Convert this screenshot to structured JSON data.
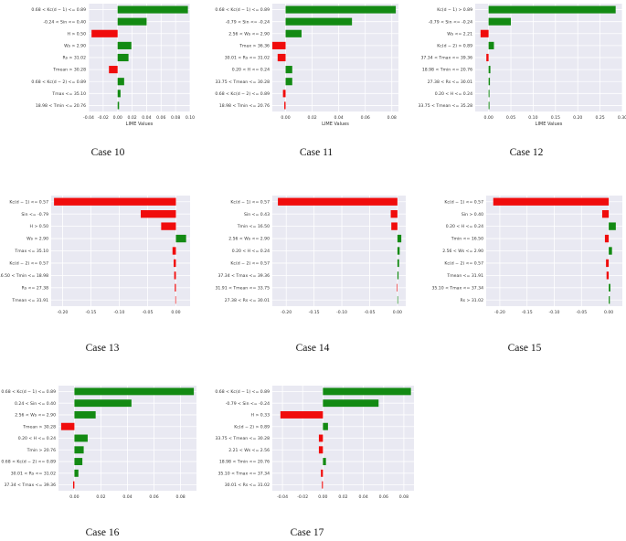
{
  "colors": {
    "positive": "#138a13",
    "negative": "#f00c0c",
    "plot_bg": "#e9e9f2",
    "grid": "#ffffff",
    "text": "#333333"
  },
  "chart_data": [
    {
      "type": "bar",
      "orientation": "horizontal",
      "caption": "Case 10",
      "xlabel": "LIME Values",
      "xlim": [
        -0.04,
        0.1
      ],
      "xticks": [
        -0.04,
        -0.02,
        0.0,
        0.02,
        0.04,
        0.06,
        0.08,
        0.1
      ],
      "xtick_labels": [
        "-0.04",
        "-0.02",
        "0.00",
        "0.02",
        "0.04",
        "0.06",
        "0.08",
        "0.10"
      ],
      "categories": [
        "0.68 < Kc(d − 1) <= 0.89",
        "-0.24 < Sin <= 0.40",
        "H > 0.50",
        "Ws > 2.90",
        "Rs > 31.02",
        "Tmean > 30.28",
        "0.68 < Kc(d − 2) <= 0.89",
        "Tmax <= 35.10",
        "18.98 < Tmin <= 20.76"
      ],
      "values": [
        0.097,
        0.04,
        -0.036,
        0.019,
        0.015,
        -0.012,
        0.009,
        0.004,
        0.002
      ]
    },
    {
      "type": "bar",
      "orientation": "horizontal",
      "caption": "Case 11",
      "xlabel": "LIME Values",
      "xlim": [
        -0.01,
        0.085
      ],
      "xticks": [
        0.0,
        0.02,
        0.04,
        0.06,
        0.08
      ],
      "xtick_labels": [
        "0.00",
        "0.02",
        "0.04",
        "0.06",
        "0.08"
      ],
      "categories": [
        "0.68 < Kc(d − 1) <= 0.89",
        "-0.79 < Sin <= -0.24",
        "2.56 < Ws <= 2.90",
        "Tmax > 36.36",
        "30.01 < Rs <= 31.02",
        "0.20 < H <= 0.24",
        "33.75 < Tmean <= 30.28",
        "0.68 < Kc(d − 2) <= 0.89",
        "18.98 < Tmin <= 20.76"
      ],
      "values": [
        0.083,
        0.05,
        0.012,
        -0.01,
        -0.006,
        0.005,
        0.005,
        -0.002,
        -0.001
      ]
    },
    {
      "type": "bar",
      "orientation": "horizontal",
      "caption": "Case 12",
      "xlabel": "LIME Values",
      "xlim": [
        -0.03,
        0.3
      ],
      "xticks": [
        0.0,
        0.05,
        0.1,
        0.15,
        0.2,
        0.25,
        0.3
      ],
      "xtick_labels": [
        "0.00",
        "0.05",
        "0.10",
        "0.15",
        "0.20",
        "0.25",
        "0.30"
      ],
      "categories": [
        "Kc(d − 1) > 0.89",
        "-0.79 < Sin <= -0.24",
        "Ws <= 2.21",
        "Kc(d − 2) > 0.89",
        "37.34 < Tmax <= 39.36",
        "18.98 < Tmin <= 20.76",
        "27.38 < Rs <= 30.01",
        "0.20 < H <= 0.24",
        "33.75 < Tmean <= 35.28"
      ],
      "values": [
        0.285,
        0.05,
        -0.018,
        0.012,
        -0.005,
        0.004,
        0.003,
        0.002,
        0.002
      ]
    },
    {
      "type": "bar",
      "orientation": "horizontal",
      "caption": "Case 13",
      "xlabel": "",
      "xlim": [
        -0.22,
        0.025
      ],
      "xticks": [
        -0.2,
        -0.15,
        -0.1,
        -0.05,
        0.0
      ],
      "xtick_labels": [
        "-0.20",
        "-0.15",
        "-0.10",
        "-0.05",
        "0.00"
      ],
      "categories": [
        "Kc(d − 1) <= 0.57",
        "Sin <= -0.79",
        "H > 0.50",
        "Ws > 2.90",
        "Tmax <= 35.10",
        "Kc(d − 2) <= 0.57",
        "16.50 < Tmin <= 18.98",
        "Rs <= 27.38",
        "Tmean <= 31.91"
      ],
      "values": [
        -0.215,
        -0.062,
        -0.026,
        0.018,
        -0.006,
        -0.004,
        -0.003,
        -0.002,
        -0.001
      ]
    },
    {
      "type": "bar",
      "orientation": "horizontal",
      "caption": "Case 14",
      "xlabel": "",
      "xlim": [
        -0.225,
        0.015
      ],
      "xticks": [
        -0.2,
        -0.15,
        -0.1,
        -0.05,
        0.0
      ],
      "xtick_labels": [
        "-0.20",
        "-0.15",
        "-0.10",
        "-0.05",
        "0.00"
      ],
      "categories": [
        "Kc(d − 1) <= 0.57",
        "Sin <= 0.43",
        "Tmin <= 16.50",
        "2.56 < Ws <= 2.90",
        "0.20 < H <= 0.24",
        "Kc(d − 2) <= 0.57",
        "37.34 < Tmax <= 39.36",
        "31.91 < Tmean <= 33.75",
        "27.38 < Rs <= 30.01"
      ],
      "values": [
        -0.215,
        -0.012,
        -0.011,
        0.007,
        0.004,
        0.003,
        0.002,
        -0.001,
        0.001
      ]
    },
    {
      "type": "bar",
      "orientation": "horizontal",
      "caption": "Case 15",
      "xlabel": "",
      "xlim": [
        -0.225,
        0.025
      ],
      "xticks": [
        -0.2,
        -0.15,
        -0.1,
        -0.05,
        0.0
      ],
      "xtick_labels": [
        "-0.20",
        "-0.15",
        "-0.10",
        "-0.05",
        "0.00"
      ],
      "categories": [
        "Kc(d − 1) <= 0.57",
        "Sin > 0.40",
        "0.20 < H <= 0.24",
        "Tmin <= 16.50",
        "2.56 < Ws <= 2.90",
        "Kc(d − 2) <= 0.57",
        "Tmean <= 31.91",
        "35.10 < Tmax <= 37.34",
        "Rs > 31.02"
      ],
      "values": [
        -0.212,
        -0.012,
        0.013,
        -0.007,
        0.006,
        -0.005,
        -0.004,
        0.003,
        0.002
      ]
    },
    {
      "type": "bar",
      "orientation": "horizontal",
      "caption": "Case 16",
      "xlabel": "",
      "xlim": [
        -0.012,
        0.092
      ],
      "xticks": [
        0.0,
        0.02,
        0.04,
        0.06,
        0.08
      ],
      "xtick_labels": [
        "0.00",
        "0.02",
        "0.04",
        "0.06",
        "0.08"
      ],
      "categories": [
        "0.68 < Kc(d − 1) <= 0.89",
        "0.24 < Sin <= 0.40",
        "2.56 < Ws <= 2.90",
        "Tmean > 30.28",
        "0.20 < H <= 0.24",
        "Tmin > 20.76",
        "0.68 < Kc(d − 2) <= 0.89",
        "30.01 < Rs <= 31.02",
        "37.34 < Tmax <= 39.36"
      ],
      "values": [
        0.09,
        0.043,
        0.016,
        -0.01,
        0.01,
        0.007,
        0.006,
        0.003,
        -0.001
      ]
    },
    {
      "type": "bar",
      "orientation": "horizontal",
      "caption": "Case 17",
      "xlabel": "",
      "xlim": [
        -0.05,
        0.09
      ],
      "xticks": [
        -0.04,
        -0.02,
        0.0,
        0.02,
        0.04,
        0.06,
        0.08
      ],
      "xtick_labels": [
        "-0.04",
        "-0.02",
        "0.00",
        "0.02",
        "0.04",
        "0.06",
        "0.08"
      ],
      "categories": [
        "0.68 < Kc(d − 1) <= 0.89",
        "-0.79 < Sin <= -0.24",
        "H > 0.33",
        "Kc(d − 2) > 0.89",
        "33.75 < Tmean <= 30.28",
        "2.21 < Ws <= 2.56",
        "18.98 < Tmin <= 20.76",
        "35.10 < Tmax <= 37.34",
        "30.01 < Rs <= 31.02"
      ],
      "values": [
        0.087,
        0.055,
        -0.042,
        0.005,
        -0.004,
        -0.004,
        0.003,
        -0.002,
        -0.001
      ]
    }
  ]
}
